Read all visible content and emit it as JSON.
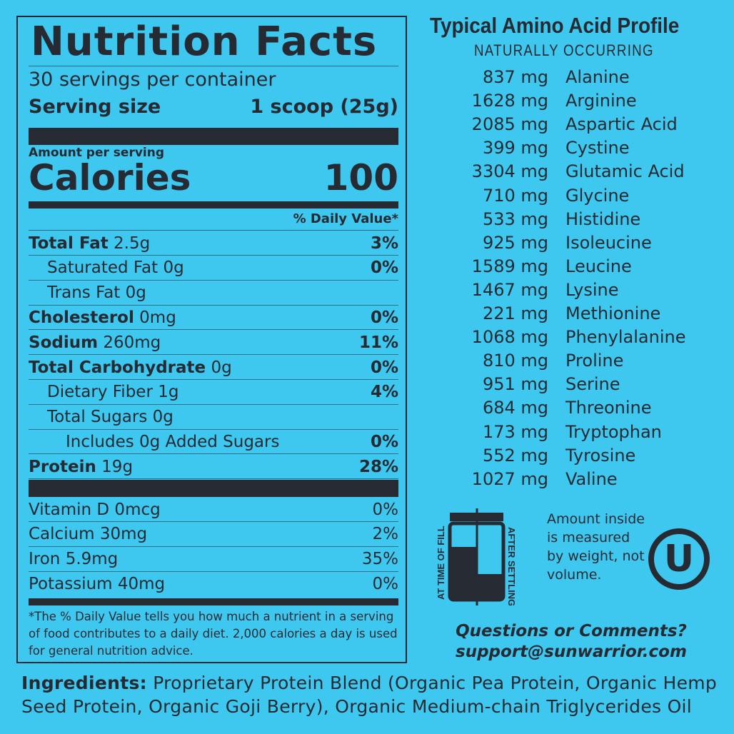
{
  "nutrition": {
    "title": "Nutrition Facts",
    "servings": "30 servings per container",
    "serving_size_label": "Serving size",
    "serving_size_value": "1 scoop (25g)",
    "amount_per_serving": "Amount per serving",
    "calories_label": "Calories",
    "calories_value": "100",
    "daily_value_header": "% Daily Value*",
    "nutrients": [
      {
        "name": "Total Fat",
        "amount": "2.5g",
        "dv": "3%",
        "bold": true,
        "indent": 0
      },
      {
        "name": "Saturated Fat",
        "amount": "0g",
        "dv": "0%",
        "bold": false,
        "indent": 1
      },
      {
        "name": "Trans Fat",
        "amount": "0g",
        "dv": "",
        "bold": false,
        "indent": 1
      },
      {
        "name": "Cholesterol",
        "amount": "0mg",
        "dv": "0%",
        "bold": true,
        "indent": 0
      },
      {
        "name": "Sodium",
        "amount": "260mg",
        "dv": "11%",
        "bold": true,
        "indent": 0
      },
      {
        "name": "Total Carbohydrate",
        "amount": "0g",
        "dv": "0%",
        "bold": true,
        "indent": 0
      },
      {
        "name": "Dietary Fiber",
        "amount": "1g",
        "dv": "4%",
        "bold": false,
        "indent": 1
      },
      {
        "name": "Total Sugars",
        "amount": "0g",
        "dv": "",
        "bold": false,
        "indent": 1
      },
      {
        "name": "Includes 0g Added Sugars",
        "amount": "",
        "dv": "0%",
        "bold": false,
        "indent": 2
      },
      {
        "name": "Protein",
        "amount": "19g",
        "dv": "28%",
        "bold": true,
        "indent": 0
      }
    ],
    "vitamins": [
      {
        "name": "Vitamin D 0mcg",
        "dv": "0%"
      },
      {
        "name": "Calcium 30mg",
        "dv": "2%"
      },
      {
        "name": "Iron 5.9mg",
        "dv": "35%"
      },
      {
        "name": "Potassium 40mg",
        "dv": "0%"
      }
    ],
    "footnote": "*The % Daily Value tells you how much a nutrient in a serving of food contributes to a daily diet. 2,000 calories a day is used for general nutrition advice."
  },
  "amino": {
    "title": "Typical Amino Acid Profile",
    "subtitle": "NATURALLY OCCURRING",
    "items": [
      {
        "mg": "837 mg",
        "name": "Alanine"
      },
      {
        "mg": "1628 mg",
        "name": "Arginine"
      },
      {
        "mg": "2085 mg",
        "name": "Aspartic Acid"
      },
      {
        "mg": "399 mg",
        "name": "Cystine"
      },
      {
        "mg": "3304 mg",
        "name": "Glutamic Acid"
      },
      {
        "mg": "710 mg",
        "name": "Glycine"
      },
      {
        "mg": "533 mg",
        "name": "Histidine"
      },
      {
        "mg": "925 mg",
        "name": "Isoleucine"
      },
      {
        "mg": "1589 mg",
        "name": "Leucine"
      },
      {
        "mg": "1467 mg",
        "name": "Lysine"
      },
      {
        "mg": "221 mg",
        "name": "Methionine"
      },
      {
        "mg": "1068 mg",
        "name": "Phenylalanine"
      },
      {
        "mg": "810 mg",
        "name": "Proline"
      },
      {
        "mg": "951 mg",
        "name": "Serine"
      },
      {
        "mg": "684 mg",
        "name": "Threonine"
      },
      {
        "mg": "173 mg",
        "name": "Tryptophan"
      },
      {
        "mg": "552 mg",
        "name": "Tyrosine"
      },
      {
        "mg": "1027 mg",
        "name": "Valine"
      }
    ]
  },
  "settling": {
    "left_label": "AT TIME OF FILL",
    "right_label": "AFTER SETTLING",
    "note": "Amount inside is measured by weight, not volume.",
    "kosher_symbol": "U"
  },
  "contact": {
    "question": "Questions or Comments?",
    "email": "support@sunwarrior.com"
  },
  "ingredients": {
    "label": "Ingredients:",
    "text": "Proprietary Protein Blend (Organic Pea Protein, Organic Hemp Seed Protein, Organic Goji Berry), Organic Medium-chain Triglycerides Oil"
  },
  "colors": {
    "background": "#3ec8f0",
    "ink": "#262a33"
  }
}
